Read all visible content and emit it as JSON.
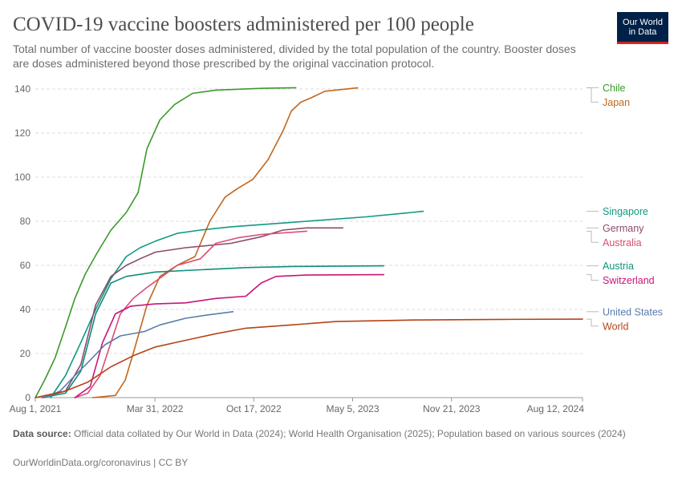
{
  "header": {
    "title": "COVID-19 vaccine boosters administered per 100 people",
    "subtitle": "Total number of vaccine booster doses administered, divided by the total population of the country. Booster doses are doses administered beyond those prescribed by the original vaccination protocol.",
    "logo_line1": "Our World",
    "logo_line2": "in Data"
  },
  "footer": {
    "source_label": "Data source:",
    "source_text": "Official data collated by Our World in Data (2024); World Health Organisation (2025); Population based on various sources (2024)",
    "credit": "OurWorldinData.org/coronavirus | CC BY"
  },
  "chart_data": {
    "type": "line",
    "title": "COVID-19 vaccine boosters administered per 100 people",
    "xlabel": "",
    "ylabel": "",
    "x_range": [
      "2021-08-01",
      "2024-08-12"
    ],
    "ylim": [
      0,
      140
    ],
    "y_ticks": [
      0,
      20,
      40,
      60,
      80,
      100,
      120,
      140
    ],
    "x_ticks": [
      {
        "date": "2021-08-01",
        "label": "Aug 1, 2021"
      },
      {
        "date": "2022-03-31",
        "label": "Mar 31, 2022"
      },
      {
        "date": "2022-10-17",
        "label": "Oct 17, 2022"
      },
      {
        "date": "2023-05-05",
        "label": "May 5, 2023"
      },
      {
        "date": "2023-11-21",
        "label": "Nov 21, 2023"
      },
      {
        "date": "2024-08-12",
        "label": "Aug 12, 2024"
      }
    ],
    "grid": "horizontal",
    "legend": "right",
    "series": [
      {
        "name": "Chile",
        "color": "#3a9a2a",
        "points": [
          [
            "2021-08-01",
            0
          ],
          [
            "2021-08-20",
            8
          ],
          [
            "2021-09-10",
            18
          ],
          [
            "2021-10-01",
            32
          ],
          [
            "2021-10-20",
            45
          ],
          [
            "2021-11-10",
            56
          ],
          [
            "2021-12-05",
            66
          ],
          [
            "2022-01-01",
            76
          ],
          [
            "2022-02-01",
            84
          ],
          [
            "2022-02-25",
            93
          ],
          [
            "2022-03-15",
            113
          ],
          [
            "2022-04-10",
            126
          ],
          [
            "2022-05-10",
            133
          ],
          [
            "2022-06-15",
            138
          ],
          [
            "2022-08-01",
            139.5
          ],
          [
            "2022-11-01",
            140.3
          ],
          [
            "2023-01-10",
            140.6
          ]
        ]
      },
      {
        "name": "Japan",
        "color": "#c1671d",
        "points": [
          [
            "2021-11-25",
            0
          ],
          [
            "2022-01-10",
            1
          ],
          [
            "2022-01-30",
            8
          ],
          [
            "2022-02-15",
            20
          ],
          [
            "2022-03-15",
            42
          ],
          [
            "2022-04-10",
            55
          ],
          [
            "2022-05-15",
            60
          ],
          [
            "2022-06-20",
            64
          ],
          [
            "2022-07-20",
            80
          ],
          [
            "2022-08-20",
            91
          ],
          [
            "2022-09-15",
            95
          ],
          [
            "2022-10-15",
            99
          ],
          [
            "2022-11-15",
            108
          ],
          [
            "2022-12-15",
            121
          ],
          [
            "2023-01-01",
            130
          ],
          [
            "2023-01-20",
            134
          ],
          [
            "2023-02-10",
            136
          ],
          [
            "2023-03-10",
            139
          ],
          [
            "2023-05-15",
            140.5
          ]
        ]
      },
      {
        "name": "Singapore",
        "color": "#109a82",
        "points": [
          [
            "2021-09-01",
            0
          ],
          [
            "2021-10-01",
            10
          ],
          [
            "2021-11-01",
            25
          ],
          [
            "2021-12-01",
            40
          ],
          [
            "2022-01-01",
            54
          ],
          [
            "2022-02-01",
            64
          ],
          [
            "2022-03-01",
            68
          ],
          [
            "2022-04-01",
            71
          ],
          [
            "2022-05-15",
            74.5
          ],
          [
            "2022-07-01",
            76
          ],
          [
            "2022-09-01",
            77.5
          ],
          [
            "2023-01-01",
            79.5
          ],
          [
            "2023-06-01",
            82
          ],
          [
            "2023-09-25",
            84.5
          ]
        ]
      },
      {
        "name": "Germany",
        "color": "#8c4a6e",
        "points": [
          [
            "2021-08-15",
            0
          ],
          [
            "2021-10-01",
            3
          ],
          [
            "2021-11-01",
            15
          ],
          [
            "2021-12-01",
            42
          ],
          [
            "2022-01-01",
            55
          ],
          [
            "2022-02-01",
            60
          ],
          [
            "2022-03-01",
            63
          ],
          [
            "2022-04-01",
            66
          ],
          [
            "2022-06-01",
            68
          ],
          [
            "2022-09-01",
            70
          ],
          [
            "2022-11-01",
            73
          ],
          [
            "2022-12-15",
            76
          ],
          [
            "2023-02-01",
            77
          ],
          [
            "2023-04-15",
            77
          ]
        ]
      },
      {
        "name": "Australia",
        "color": "#d94e73",
        "points": [
          [
            "2021-10-20",
            0
          ],
          [
            "2021-11-15",
            2
          ],
          [
            "2021-12-10",
            10
          ],
          [
            "2022-01-01",
            25
          ],
          [
            "2022-01-20",
            38
          ],
          [
            "2022-02-15",
            45
          ],
          [
            "2022-03-15",
            50
          ],
          [
            "2022-04-15",
            55
          ],
          [
            "2022-05-15",
            60
          ],
          [
            "2022-07-01",
            63
          ],
          [
            "2022-08-01",
            70
          ],
          [
            "2022-09-15",
            72.5
          ],
          [
            "2022-11-01",
            74
          ],
          [
            "2023-02-01",
            75.5
          ]
        ]
      },
      {
        "name": "Austria",
        "color": "#0f8f7b",
        "points": [
          [
            "2021-08-15",
            0
          ],
          [
            "2021-10-01",
            2
          ],
          [
            "2021-11-01",
            12
          ],
          [
            "2021-12-01",
            38
          ],
          [
            "2022-01-01",
            52
          ],
          [
            "2022-02-01",
            55
          ],
          [
            "2022-04-01",
            57
          ],
          [
            "2022-07-01",
            58
          ],
          [
            "2022-10-01",
            59
          ],
          [
            "2023-01-01",
            59.5
          ],
          [
            "2023-07-07",
            59.8
          ]
        ]
      },
      {
        "name": "Switzerland",
        "color": "#c7157a",
        "points": [
          [
            "2021-10-20",
            0
          ],
          [
            "2021-11-20",
            5
          ],
          [
            "2021-12-15",
            25
          ],
          [
            "2022-01-10",
            38
          ],
          [
            "2022-02-10",
            41.5
          ],
          [
            "2022-04-01",
            42.5
          ],
          [
            "2022-06-01",
            43
          ],
          [
            "2022-08-01",
            45
          ],
          [
            "2022-10-01",
            46
          ],
          [
            "2022-11-01",
            52
          ],
          [
            "2022-12-01",
            55
          ],
          [
            "2023-02-01",
            55.6
          ],
          [
            "2023-07-07",
            55.8
          ]
        ]
      },
      {
        "name": "United States",
        "color": "#5a7cad",
        "points": [
          [
            "2021-08-20",
            0
          ],
          [
            "2021-09-20",
            3
          ],
          [
            "2021-10-20",
            10
          ],
          [
            "2021-11-20",
            17
          ],
          [
            "2021-12-20",
            24
          ],
          [
            "2022-01-20",
            28
          ],
          [
            "2022-03-10",
            30
          ],
          [
            "2022-04-10",
            33
          ],
          [
            "2022-06-01",
            36
          ],
          [
            "2022-07-15",
            37.5
          ],
          [
            "2022-09-05",
            39
          ]
        ]
      },
      {
        "name": "World",
        "color": "#b54316",
        "points": [
          [
            "2021-08-01",
            0
          ],
          [
            "2021-10-01",
            3
          ],
          [
            "2021-11-15",
            7
          ],
          [
            "2022-01-01",
            14
          ],
          [
            "2022-02-15",
            19
          ],
          [
            "2022-04-01",
            23
          ],
          [
            "2022-06-01",
            26
          ],
          [
            "2022-08-01",
            29
          ],
          [
            "2022-10-01",
            31.5
          ],
          [
            "2023-01-01",
            33
          ],
          [
            "2023-04-01",
            34.5
          ],
          [
            "2023-09-01",
            35.2
          ],
          [
            "2024-03-01",
            35.5
          ],
          [
            "2024-08-12",
            35.6
          ]
        ]
      }
    ]
  }
}
